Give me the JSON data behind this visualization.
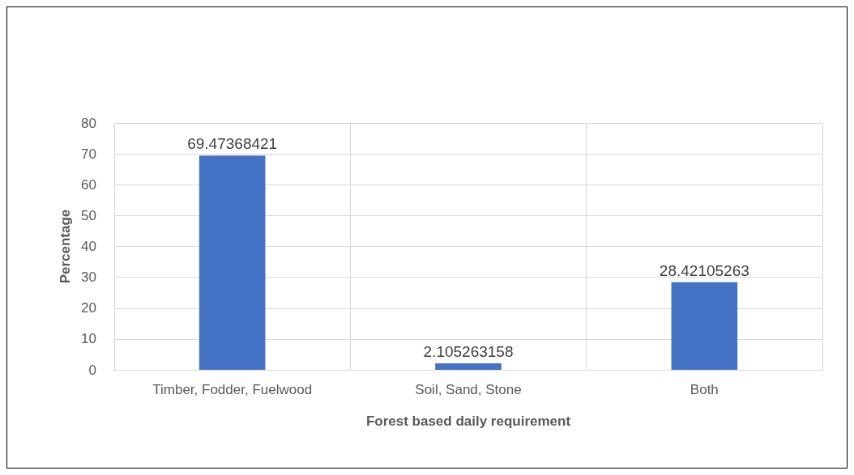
{
  "chart_data": {
    "type": "bar",
    "xlabel": "Forest based daily requirement",
    "ylabel": "Percentage",
    "categories": [
      "Timber, Fodder, Fuelwood",
      "Soil, Sand, Stone",
      "Both"
    ],
    "values": [
      69.47368421,
      2.105263158,
      28.42105263
    ],
    "color": "#4472c4",
    "ylim": [
      0,
      80
    ],
    "yticks": [
      0,
      10,
      20,
      30,
      40,
      50,
      60,
      70,
      80
    ],
    "grid": true,
    "data_labels": true
  }
}
